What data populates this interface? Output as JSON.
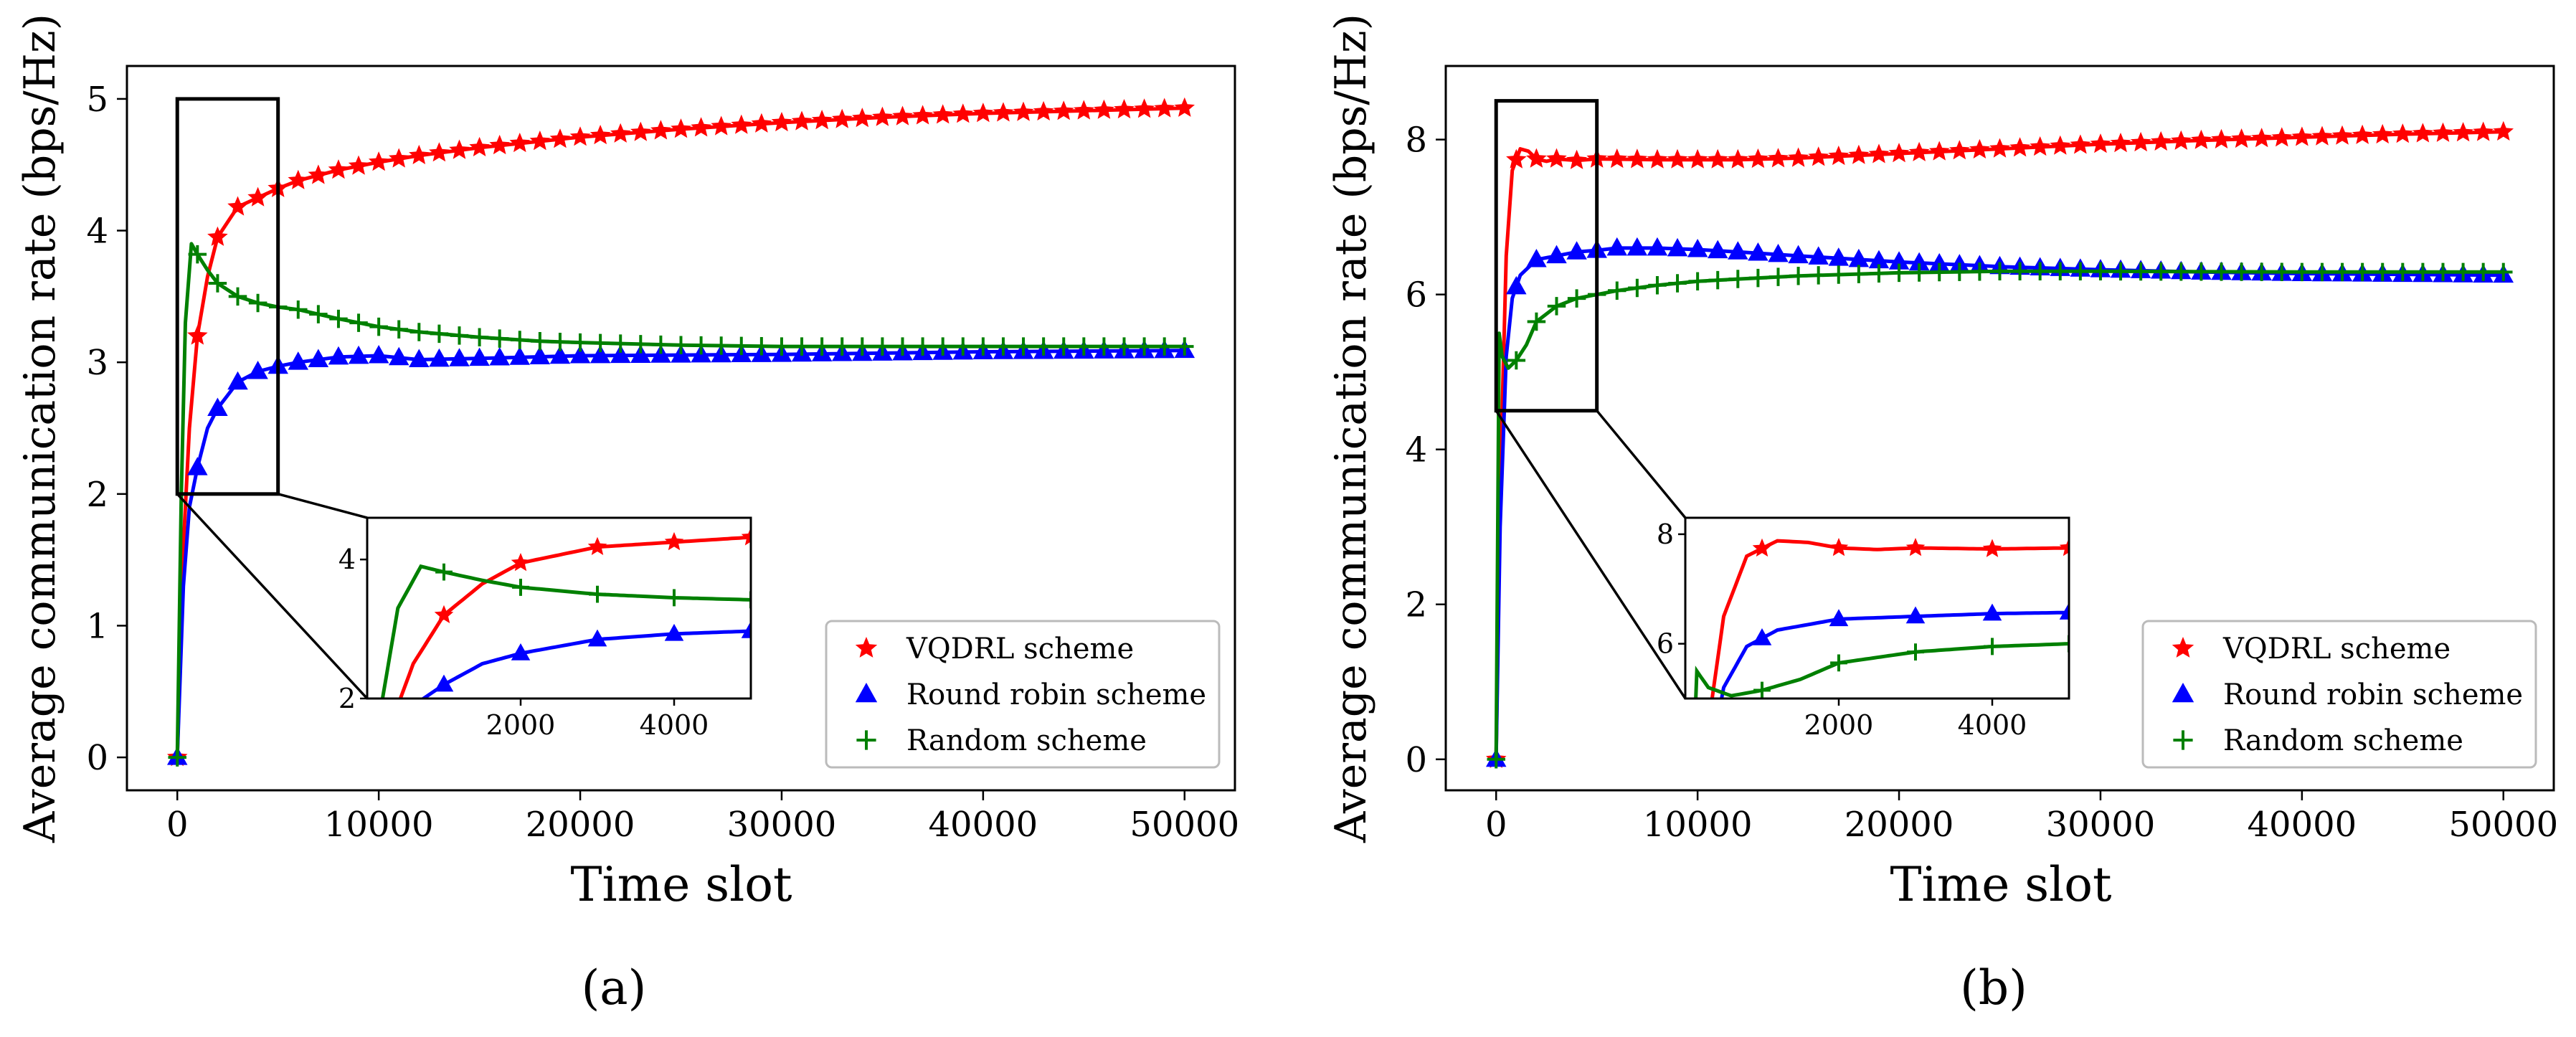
{
  "colors": {
    "vqdrl": "#ff0000",
    "robin": "#0000ff",
    "random": "#008000"
  },
  "legend": {
    "vqdrl": "VQDRL scheme",
    "robin": "Round robin scheme",
    "random": "Random scheme"
  },
  "captions": [
    "(a)",
    "(b)"
  ],
  "chart_data": [
    {
      "type": "line",
      "caption": "(a)",
      "xlabel": "Time slot",
      "ylabel": "Average communication rate (bps/Hz)",
      "xlim": [
        -2500,
        52500
      ],
      "ylim": [
        -0.25,
        5.25
      ],
      "xticks": [
        0,
        10000,
        20000,
        30000,
        40000,
        50000
      ],
      "yticks": [
        0,
        1,
        2,
        3,
        4,
        5
      ],
      "legend_position": "lower right",
      "zoom_region": {
        "x": [
          0,
          5000
        ],
        "y": [
          2,
          5
        ]
      },
      "inset": {
        "xlim": [
          0,
          5000
        ],
        "ylim": [
          2,
          4.6
        ],
        "xticks": [
          2000,
          4000
        ],
        "yticks": [
          2,
          4
        ]
      },
      "series": [
        {
          "key": "vqdrl",
          "name": "VQDRL scheme",
          "marker": "star",
          "points": [
            [
              0,
              0
            ],
            [
              300,
              1.6
            ],
            [
              600,
              2.5
            ],
            [
              1000,
              3.2
            ],
            [
              1500,
              3.65
            ],
            [
              2000,
              3.95
            ],
            [
              3000,
              4.18
            ],
            [
              4000,
              4.25
            ],
            [
              5000,
              4.32
            ],
            [
              6000,
              4.38
            ],
            [
              8000,
              4.46
            ],
            [
              10000,
              4.52
            ],
            [
              12000,
              4.57
            ],
            [
              15000,
              4.63
            ],
            [
              20000,
              4.71
            ],
            [
              25000,
              4.77
            ],
            [
              30000,
              4.82
            ],
            [
              35000,
              4.86
            ],
            [
              40000,
              4.89
            ],
            [
              45000,
              4.91
            ],
            [
              50000,
              4.93
            ]
          ]
        },
        {
          "key": "robin",
          "name": "Round robin scheme",
          "marker": "triangle",
          "points": [
            [
              0,
              0
            ],
            [
              300,
              1.3
            ],
            [
              600,
              1.9
            ],
            [
              1000,
              2.2
            ],
            [
              1500,
              2.5
            ],
            [
              2000,
              2.65
            ],
            [
              2500,
              2.75
            ],
            [
              3000,
              2.85
            ],
            [
              4000,
              2.93
            ],
            [
              5000,
              2.97
            ],
            [
              6000,
              3.0
            ],
            [
              8000,
              3.04
            ],
            [
              10000,
              3.05
            ],
            [
              12000,
              3.02
            ],
            [
              15000,
              3.03
            ],
            [
              20000,
              3.05
            ],
            [
              30000,
              3.06
            ],
            [
              40000,
              3.08
            ],
            [
              50000,
              3.09
            ]
          ]
        },
        {
          "key": "random",
          "name": "Random scheme",
          "marker": "plus",
          "points": [
            [
              0,
              0
            ],
            [
              200,
              2.0
            ],
            [
              400,
              3.3
            ],
            [
              700,
              3.9
            ],
            [
              1000,
              3.82
            ],
            [
              1500,
              3.7
            ],
            [
              2000,
              3.6
            ],
            [
              3000,
              3.5
            ],
            [
              4000,
              3.45
            ],
            [
              5000,
              3.42
            ],
            [
              6000,
              3.4
            ],
            [
              8000,
              3.33
            ],
            [
              10000,
              3.27
            ],
            [
              12000,
              3.23
            ],
            [
              15000,
              3.19
            ],
            [
              18000,
              3.16
            ],
            [
              20000,
              3.15
            ],
            [
              25000,
              3.13
            ],
            [
              30000,
              3.12
            ],
            [
              40000,
              3.12
            ],
            [
              50000,
              3.12
            ]
          ]
        }
      ]
    },
    {
      "type": "line",
      "caption": "(b)",
      "xlabel": "Time slot",
      "ylabel": "Average communication rate (bps/Hz)",
      "xlim": [
        -2500,
        52500
      ],
      "ylim": [
        -0.4,
        8.95
      ],
      "xticks": [
        0,
        10000,
        20000,
        30000,
        40000,
        50000
      ],
      "yticks": [
        0,
        2,
        4,
        6,
        8
      ],
      "legend_position": "lower right",
      "zoom_region": {
        "x": [
          0,
          5000
        ],
        "y": [
          4.5,
          8.5
        ]
      },
      "inset": {
        "xlim": [
          0,
          5000
        ],
        "ylim": [
          5,
          8.3
        ],
        "xticks": [
          2000,
          4000
        ],
        "yticks": [
          6,
          8
        ]
      },
      "series": [
        {
          "key": "vqdrl",
          "name": "VQDRL scheme",
          "marker": "star",
          "points": [
            [
              0,
              0
            ],
            [
              200,
              3.5
            ],
            [
              500,
              6.5
            ],
            [
              800,
              7.6
            ],
            [
              1200,
              7.88
            ],
            [
              1600,
              7.85
            ],
            [
              2000,
              7.75
            ],
            [
              2500,
              7.72
            ],
            [
              3000,
              7.75
            ],
            [
              4000,
              7.73
            ],
            [
              5000,
              7.75
            ],
            [
              8000,
              7.74
            ],
            [
              10000,
              7.74
            ],
            [
              12000,
              7.74
            ],
            [
              15000,
              7.76
            ],
            [
              20000,
              7.82
            ],
            [
              25000,
              7.88
            ],
            [
              30000,
              7.94
            ],
            [
              35000,
              7.99
            ],
            [
              40000,
              8.03
            ],
            [
              45000,
              8.07
            ],
            [
              50000,
              8.1
            ]
          ]
        },
        {
          "key": "robin",
          "name": "Round robin scheme",
          "marker": "triangle",
          "points": [
            [
              0,
              0
            ],
            [
              200,
              3.0
            ],
            [
              500,
              5.2
            ],
            [
              800,
              5.95
            ],
            [
              1200,
              6.25
            ],
            [
              1600,
              6.35
            ],
            [
              2000,
              6.45
            ],
            [
              3000,
              6.5
            ],
            [
              4000,
              6.55
            ],
            [
              5000,
              6.57
            ],
            [
              6000,
              6.6
            ],
            [
              8000,
              6.6
            ],
            [
              10000,
              6.58
            ],
            [
              12000,
              6.55
            ],
            [
              15000,
              6.5
            ],
            [
              20000,
              6.42
            ],
            [
              25000,
              6.36
            ],
            [
              30000,
              6.32
            ],
            [
              35000,
              6.29
            ],
            [
              40000,
              6.27
            ],
            [
              45000,
              6.26
            ],
            [
              50000,
              6.25
            ]
          ]
        },
        {
          "key": "random",
          "name": "Random scheme",
          "marker": "plus",
          "points": [
            [
              0,
              0
            ],
            [
              150,
              5.5
            ],
            [
              300,
              5.2
            ],
            [
              600,
              5.05
            ],
            [
              1000,
              5.15
            ],
            [
              1500,
              5.35
            ],
            [
              2000,
              5.65
            ],
            [
              3000,
              5.85
            ],
            [
              4000,
              5.95
            ],
            [
              5000,
              6.0
            ],
            [
              6000,
              6.05
            ],
            [
              8000,
              6.12
            ],
            [
              10000,
              6.17
            ],
            [
              12000,
              6.2
            ],
            [
              15000,
              6.24
            ],
            [
              20000,
              6.28
            ],
            [
              25000,
              6.3
            ],
            [
              30000,
              6.3
            ],
            [
              40000,
              6.29
            ],
            [
              50000,
              6.29
            ]
          ]
        }
      ]
    }
  ]
}
